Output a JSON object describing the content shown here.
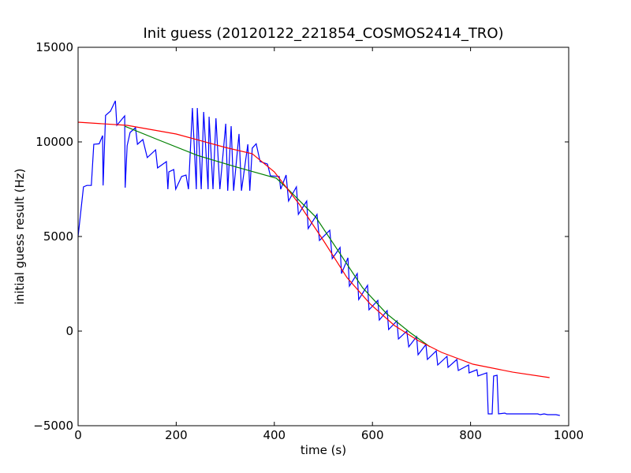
{
  "chart_data": {
    "type": "line",
    "title": "Init guess (20120122_221854_COSMOS2414_TRO)",
    "x_label": "time (s)",
    "y_label": "initial guess result (Hz)",
    "xlim": [
      0,
      1000
    ],
    "ylim": [
      -5000,
      15000
    ],
    "xticks": [
      0,
      200,
      400,
      600,
      800,
      1000
    ],
    "yticks": [
      {
        "value": -5000,
        "label": "−5000"
      },
      0,
      5000,
      10000,
      15000
    ],
    "series": [
      {
        "color": "#0000ff",
        "x": [
          0,
          11,
          18,
          27,
          32,
          43,
          50,
          51,
          56,
          66,
          76,
          79,
          95,
          96,
          100,
          106,
          117,
          121,
          132,
          141,
          158,
          162,
          180,
          183,
          185,
          195,
          199,
          211,
          220,
          225,
          233,
          241,
          243,
          251,
          256,
          265,
          267,
          275,
          281,
          289,
          301,
          305,
          312,
          317,
          328,
          333,
          346,
          350,
          355,
          363,
          371,
          386,
          392,
          410,
          413,
          424,
          429,
          445,
          449,
          466,
          469,
          487,
          492,
          513,
          518,
          534,
          537,
          550,
          553,
          569,
          572,
          590,
          593,
          611,
          614,
          630,
          633,
          650,
          653,
          670,
          674,
          690,
          693,
          709,
          712,
          730,
          733,
          752,
          754,
          772,
          775,
          796,
          797,
          813,
          815,
          833,
          836,
          844,
          847,
          854,
          857,
          870,
          873,
          902,
          937,
          942,
          950,
          957,
          974,
          982
        ],
        "values": [
          5000,
          7625,
          7700,
          7700,
          9875,
          9900,
          10333,
          7700,
          11400,
          11625,
          12170,
          10875,
          11375,
          7580,
          9800,
          10500,
          10750,
          9875,
          10125,
          9170,
          9580,
          8625,
          8960,
          7500,
          8417,
          8540,
          7500,
          8170,
          8250,
          7500,
          11790,
          7500,
          11790,
          7500,
          11580,
          7500,
          11330,
          7500,
          11250,
          7500,
          10960,
          7420,
          10830,
          7420,
          10420,
          7420,
          9875,
          7420,
          9670,
          9900,
          8960,
          8830,
          8210,
          8170,
          7500,
          8250,
          6875,
          7625,
          6170,
          6875,
          5420,
          6170,
          4790,
          5330,
          3830,
          4420,
          3040,
          3875,
          2375,
          3040,
          1670,
          2420,
          1125,
          1625,
          583,
          1083,
          83,
          542,
          -417,
          0,
          -833,
          -292,
          -1250,
          -708,
          -1500,
          -1042,
          -1792,
          -1333,
          -1917,
          -1500,
          -2083,
          -1792,
          -2208,
          -2042,
          -2375,
          -2208,
          -4375,
          -4375,
          -2375,
          -2333,
          -4375,
          -4333,
          -4375,
          -4375,
          -4375,
          -4417,
          -4375,
          -4417,
          -4417,
          -4458
        ]
      },
      {
        "color": "#008000",
        "x": [
          95,
          162,
          243,
          323,
          404,
          428,
          484,
          532,
          580,
          629,
          677,
          717
        ],
        "values": [
          10830,
          10125,
          9290,
          8670,
          8080,
          7500,
          6040,
          4170,
          2290,
          920,
          -83,
          -830
        ]
      },
      {
        "color": "#ff0000",
        "x": [
          0,
          100,
          200,
          300,
          355,
          400,
          452,
          500,
          548,
          596,
          645,
          693,
          741,
          805,
          886,
          961
        ],
        "values": [
          11042,
          10875,
          10417,
          9708,
          9375,
          8417,
          6667,
          4792,
          2833,
          1417,
          292,
          -500,
          -1125,
          -1750,
          -2170,
          -2458
        ]
      }
    ]
  }
}
